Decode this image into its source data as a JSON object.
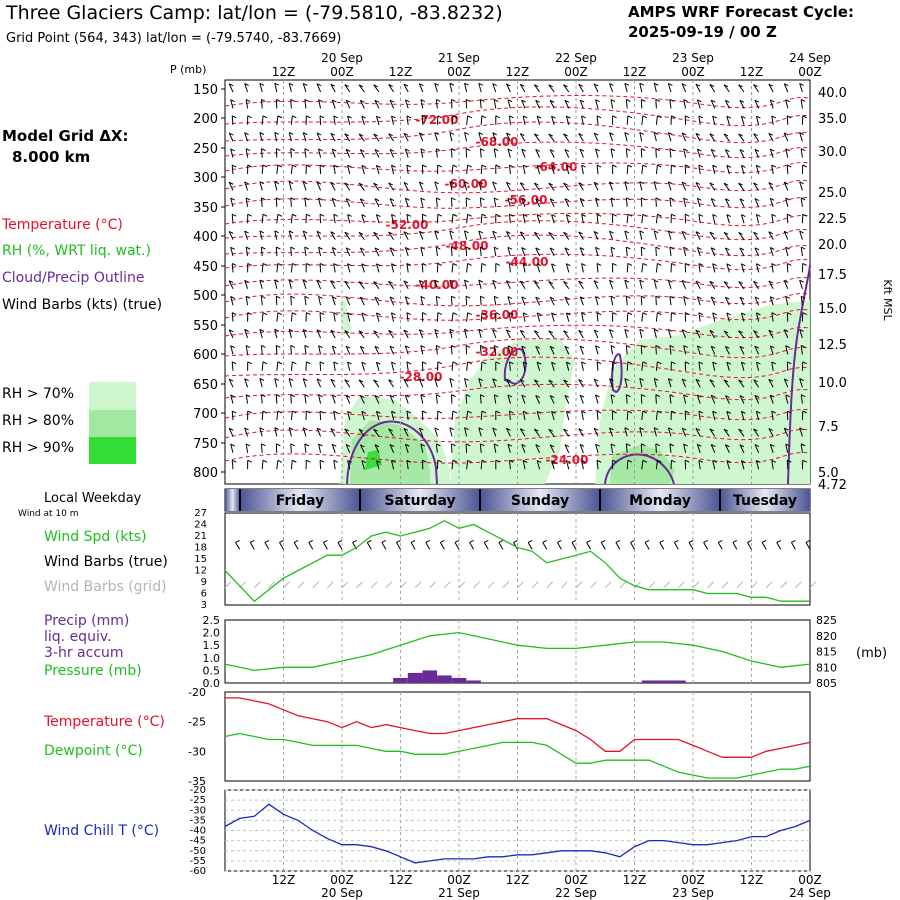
{
  "header": {
    "title": "Three Glaciers Camp:  lat/lon = (-79.5810, -83.8232)",
    "subtitle": "Grid Point (564, 343) lat/lon = (-79.5740, -83.7669)",
    "cycle_label": "AMPS WRF Forecast Cycle:",
    "cycle_value": "2025-09-19 / 00  Z"
  },
  "sidebar": {
    "grid_label": "Model Grid ΔX:",
    "grid_value": "8.000 km",
    "temperature": "Temperature (°C)",
    "rh": "RH (%, WRT liq. wat.)",
    "cloud": "Cloud/Precip Outline",
    "wind_barbs": "Wind Barbs (kts) (true)",
    "rh70": "RH > 70%",
    "rh80": "RH > 80%",
    "rh90": "RH > 90%",
    "local_weekday": "Local Weekday",
    "wind_at_10m": "Wind at 10 m",
    "wind_spd": "Wind Spd (kts)",
    "wind_barbs_true": "Wind Barbs (true)",
    "wind_barbs_grid": "Wind Barbs (grid)",
    "precip": "Precip (mm)",
    "liq_equiv": "liq. equiv.",
    "accum": "3-hr accum",
    "pressure": "Pressure (mb)",
    "temp2": "Temperature (°C)",
    "dewpoint": "Dewpoint (°C)",
    "windchill": "Wind Chill T (°C)"
  },
  "colors": {
    "temperature": "#e8102a",
    "rh": "#1fbf1f",
    "cloud": "#6a2a9a",
    "wind_grid": "#b4b4b4",
    "windchill": "#1a2abf",
    "rh70": "#ccf7cc",
    "rh80": "#a2e8a2",
    "rh90": "#33dd33",
    "weekday_dark": "#4c5494",
    "weekday_light": "#e6e8f2"
  },
  "chart_data": [
    {
      "type": "heatmap",
      "panel": "cross-section",
      "yaxis_left_label": "P (mb)",
      "yaxis_left_ticks": [
        150,
        200,
        250,
        300,
        350,
        400,
        450,
        500,
        550,
        600,
        650,
        700,
        750,
        800
      ],
      "yaxis_right_label": "Kft MSL",
      "yaxis_right_ticks": [
        "40.0",
        "35.0",
        "30.0",
        "25.0",
        "22.5",
        "20.0",
        "17.5",
        "15.0",
        "12.5",
        "10.0",
        "7.5",
        "5.0",
        "4.72"
      ],
      "x_top_dates": [
        "20 Sep",
        "21 Sep",
        "22 Sep",
        "23 Sep",
        "24 Sep"
      ],
      "x_top_hours": [
        "12Z",
        "00Z",
        "12Z",
        "00Z",
        "12Z",
        "00Z",
        "12Z",
        "00Z",
        "12Z",
        "00Z"
      ],
      "temperature_labels": [
        "-72.00",
        "-68.00",
        "-64.00",
        "-60.00",
        "-56.00",
        "-52.00",
        "-48.00",
        "-44.00",
        "-40.00",
        "-36.00",
        "-32.00",
        "-28.00",
        "-24.00"
      ]
    },
    {
      "type": "line",
      "panel": "wind",
      "weekdays": [
        "Friday",
        "Saturday",
        "Sunday",
        "Monday",
        "Tuesday"
      ],
      "yticks": [
        3,
        6,
        9,
        12,
        15,
        18,
        21,
        24,
        27
      ],
      "ylim": [
        3,
        27
      ],
      "series": [
        {
          "name": "Wind Spd (kts)",
          "x": [
            0,
            3,
            6,
            9,
            12,
            15,
            18,
            21,
            24,
            27,
            30,
            33,
            36,
            39,
            42,
            45,
            48,
            51,
            54,
            57,
            60,
            63,
            66,
            69,
            72,
            75,
            78,
            81,
            84,
            87,
            90,
            93,
            96,
            99,
            102,
            105,
            108,
            111,
            114,
            117,
            120
          ],
          "values": [
            12,
            8,
            4,
            7,
            10,
            12,
            14,
            16,
            16,
            18,
            21,
            22,
            21,
            22,
            23,
            25,
            23,
            24,
            22,
            20,
            18,
            17,
            14,
            15,
            16,
            17,
            14,
            10,
            8,
            7,
            7,
            7,
            7,
            6,
            6,
            6,
            5,
            5,
            4,
            4,
            4
          ]
        }
      ]
    },
    {
      "type": "line",
      "panel": "precip-pressure",
      "yticks_left": [
        "0.0",
        "0.5",
        "1.0",
        "1.5",
        "2.0",
        "2.5"
      ],
      "ylim_left": [
        0,
        2.5
      ],
      "yticks_right": [
        805,
        810,
        815,
        820,
        825
      ],
      "ylim_right": [
        805,
        825
      ],
      "yaxis_right_unit": "(mb)",
      "precip_bars": {
        "x": [
          36,
          39,
          42,
          45,
          48,
          51,
          87,
          90,
          93
        ],
        "values": [
          0.2,
          0.4,
          0.5,
          0.3,
          0.2,
          0.1,
          0.1,
          0.1,
          0.1
        ]
      },
      "series": [
        {
          "name": "Pressure (mb)",
          "x": [
            0,
            6,
            12,
            18,
            24,
            30,
            36,
            42,
            48,
            54,
            60,
            66,
            72,
            78,
            84,
            90,
            96,
            102,
            108,
            114,
            120
          ],
          "values": [
            811,
            809,
            810,
            810,
            812,
            814,
            817,
            820,
            821,
            819,
            817,
            816,
            816,
            817,
            818,
            818,
            817,
            815,
            812,
            810,
            811
          ]
        }
      ]
    },
    {
      "type": "line",
      "panel": "temperature-dewpoint",
      "yticks": [
        -20,
        -25,
        -30,
        -35
      ],
      "ylim": [
        -35,
        -20
      ],
      "series": [
        {
          "name": "Temperature (°C)",
          "x": [
            0,
            3,
            6,
            9,
            12,
            15,
            18,
            21,
            24,
            27,
            30,
            33,
            36,
            39,
            42,
            45,
            48,
            51,
            54,
            57,
            60,
            63,
            66,
            69,
            72,
            75,
            78,
            81,
            84,
            87,
            90,
            93,
            96,
            99,
            102,
            105,
            108,
            111,
            114,
            117,
            120
          ],
          "values": [
            -21,
            -21,
            -21.5,
            -22,
            -23,
            -24,
            -24.5,
            -25,
            -26,
            -25,
            -26,
            -25.5,
            -26,
            -26.5,
            -27,
            -27,
            -26.5,
            -26,
            -25.5,
            -25,
            -24.5,
            -24.5,
            -24.5,
            -25.5,
            -26.5,
            -28,
            -30,
            -30,
            -28,
            -28,
            -28,
            -28,
            -29,
            -30,
            -31,
            -31,
            -31,
            -30,
            -29.5,
            -29,
            -28.5
          ]
        },
        {
          "name": "Dewpoint (°C)",
          "x": [
            0,
            3,
            6,
            9,
            12,
            15,
            18,
            21,
            24,
            27,
            30,
            33,
            36,
            39,
            42,
            45,
            48,
            51,
            54,
            57,
            60,
            63,
            66,
            69,
            72,
            75,
            78,
            81,
            84,
            87,
            90,
            93,
            96,
            99,
            102,
            105,
            108,
            111,
            114,
            117,
            120
          ],
          "values": [
            -27.5,
            -27,
            -27.5,
            -28,
            -28,
            -28.5,
            -29,
            -29,
            -29,
            -29,
            -29.5,
            -30,
            -30,
            -30.5,
            -30.5,
            -30.5,
            -30,
            -29.5,
            -29,
            -28.5,
            -28.5,
            -28.5,
            -29,
            -30.5,
            -32,
            -32,
            -31.5,
            -31.5,
            -31.5,
            -31.5,
            -32.5,
            -33.5,
            -34,
            -34.5,
            -34.5,
            -34.5,
            -34,
            -33.5,
            -33,
            -33,
            -32.5
          ]
        }
      ]
    },
    {
      "type": "line",
      "panel": "wind-chill",
      "yticks": [
        -20,
        -25,
        -30,
        -35,
        -40,
        -45,
        -50,
        -55,
        -60
      ],
      "ylim": [
        -60,
        -20
      ],
      "x_bottom_hours": [
        "12Z",
        "00Z",
        "12Z",
        "00Z",
        "12Z",
        "00Z",
        "12Z",
        "00Z",
        "12Z",
        "00Z"
      ],
      "x_bottom_dates": [
        "20 Sep",
        "21 Sep",
        "22 Sep",
        "23 Sep",
        "24 Sep"
      ],
      "series": [
        {
          "name": "Wind Chill T (°C)",
          "x": [
            0,
            3,
            6,
            9,
            12,
            15,
            18,
            21,
            24,
            27,
            30,
            33,
            36,
            39,
            42,
            45,
            48,
            51,
            54,
            57,
            60,
            63,
            66,
            69,
            72,
            75,
            78,
            81,
            84,
            87,
            90,
            93,
            96,
            99,
            102,
            105,
            108,
            111,
            114,
            117,
            120
          ],
          "values": [
            -38,
            -34,
            -33,
            -27,
            -32,
            -35,
            -40,
            -44,
            -47,
            -47,
            -48,
            -50,
            -53,
            -56,
            -55,
            -54,
            -54,
            -54,
            -53,
            -53,
            -52,
            -52,
            -51,
            -50,
            -50,
            -50,
            -51,
            -53,
            -48,
            -45,
            -45,
            -46,
            -47,
            -47,
            -46,
            -45,
            -43,
            -43,
            -40,
            -38,
            -35
          ]
        }
      ]
    }
  ]
}
